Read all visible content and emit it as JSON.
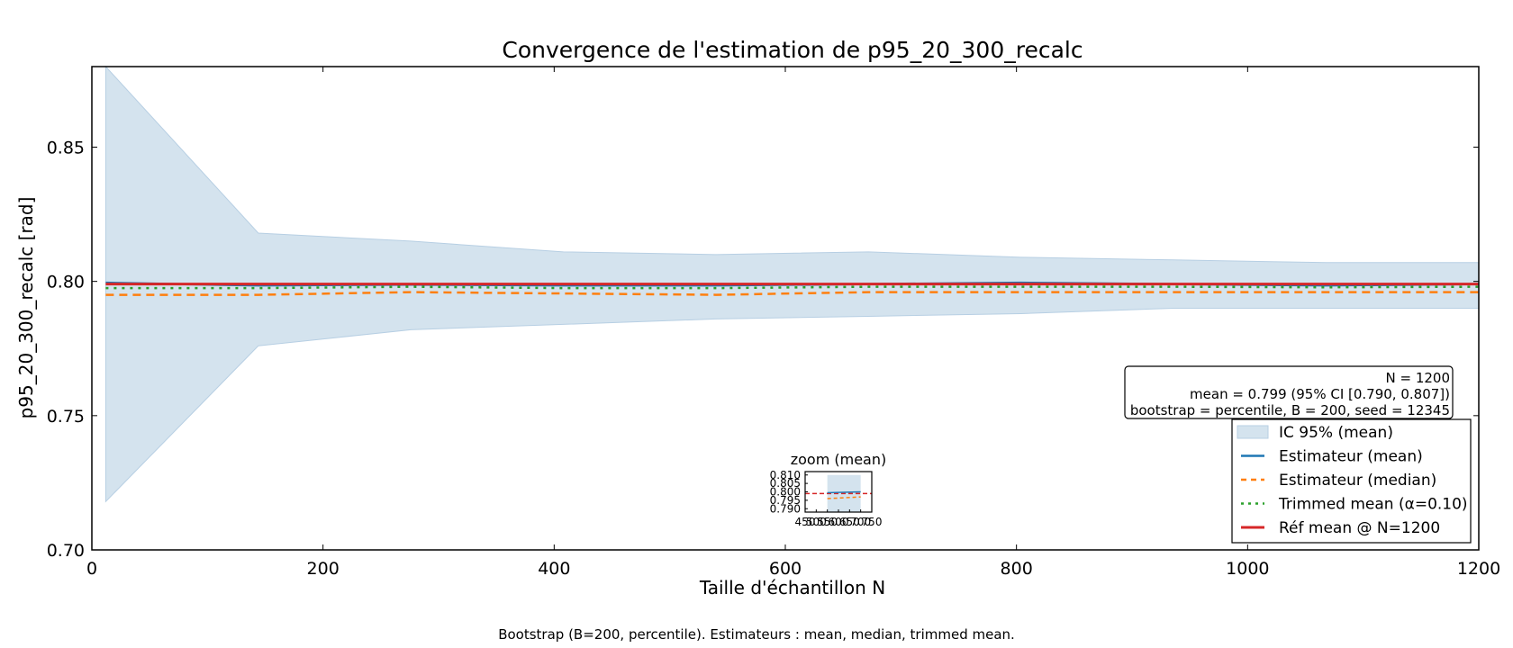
{
  "chart_data": {
    "type": "line",
    "title": "Convergence de l'estimation de p95_20_300_recalc",
    "xlabel": "Taille d'échantillon N",
    "ylabel": "p95_20_300_recalc [rad]",
    "xlim": [
      0,
      1200
    ],
    "ylim": [
      0.7,
      0.88
    ],
    "xticks": [
      0,
      200,
      400,
      600,
      800,
      1000,
      1200
    ],
    "xtick_labels": [
      "0",
      "200",
      "400",
      "600",
      "800",
      "1000",
      "1200"
    ],
    "yticks": [
      0.7,
      0.75,
      0.8,
      0.85
    ],
    "ytick_labels": [
      "0.70",
      "0.75",
      "0.80",
      "0.85"
    ],
    "x": [
      12,
      144,
      276,
      408,
      540,
      672,
      804,
      936,
      1068,
      1200
    ],
    "ci_band": {
      "name": "IC 95% (mean)",
      "color": "#c6dbea",
      "lower": [
        0.718,
        0.776,
        0.782,
        0.784,
        0.786,
        0.787,
        0.788,
        0.79,
        0.79,
        0.79
      ],
      "upper": [
        0.88,
        0.818,
        0.815,
        0.811,
        0.81,
        0.811,
        0.809,
        0.808,
        0.807,
        0.807
      ]
    },
    "series": [
      {
        "name": "Estimateur (mean)",
        "style": "solid",
        "color": "#1f77b4",
        "values": [
          0.7995,
          0.7985,
          0.7988,
          0.7985,
          0.7985,
          0.799,
          0.7995,
          0.799,
          0.7985,
          0.799
        ]
      },
      {
        "name": "Estimateur (median)",
        "style": "dashed",
        "color": "#ff7f0e",
        "values": [
          0.795,
          0.795,
          0.796,
          0.7955,
          0.795,
          0.796,
          0.796,
          0.796,
          0.796,
          0.796
        ]
      },
      {
        "name": "Trimmed mean (α=0.10)",
        "style": "dotted",
        "color": "#2ca02c",
        "values": [
          0.7975,
          0.7975,
          0.798,
          0.7975,
          0.7975,
          0.798,
          0.798,
          0.798,
          0.7978,
          0.798
        ]
      },
      {
        "name": "Réf mean @ N=1200",
        "style": "solid-thick",
        "color": "#d62728",
        "values": [
          0.799,
          0.799,
          0.799,
          0.799,
          0.799,
          0.799,
          0.799,
          0.799,
          0.799,
          0.799
        ]
      }
    ],
    "legend": {
      "placement": "lower-right",
      "entries": [
        "IC 95% (mean)",
        "Estimateur (mean)",
        "Estimateur (median)",
        "Trimmed mean (α=0.10)",
        "Réf mean @ N=1200"
      ]
    },
    "stats_box": {
      "lines": [
        "N = 1200",
        "mean = 0.799 (95% CI [0.790, 0.807])",
        "bootstrap = percentile, B = 200, seed = 12345"
      ]
    },
    "inset": {
      "title": "zoom (mean)",
      "xlim": [
        450,
        750
      ],
      "ylim": [
        0.788,
        0.812
      ],
      "yticks": [
        0.79,
        0.795,
        0.8,
        0.805,
        0.81
      ],
      "ytick_labels": [
        "0.790",
        "0.795",
        "0.800",
        "0.805",
        "0.810"
      ],
      "xticks": [
        450,
        500,
        550,
        600,
        650,
        700,
        750
      ],
      "xtick_labels": [
        "450",
        "500",
        "550",
        "600",
        "650",
        "700",
        "750"
      ],
      "band_x": [
        550,
        700
      ],
      "band_y": [
        0.788,
        0.81
      ],
      "mean_values": [
        [
          550,
          0.7995
        ],
        [
          700,
          0.8
        ]
      ],
      "median_values": [
        [
          550,
          0.796
        ],
        [
          700,
          0.797
        ]
      ],
      "ref_value": 0.799
    },
    "grid": false
  },
  "caption": "Bootstrap (B=200, percentile). Estimateurs : mean, median, trimmed mean."
}
